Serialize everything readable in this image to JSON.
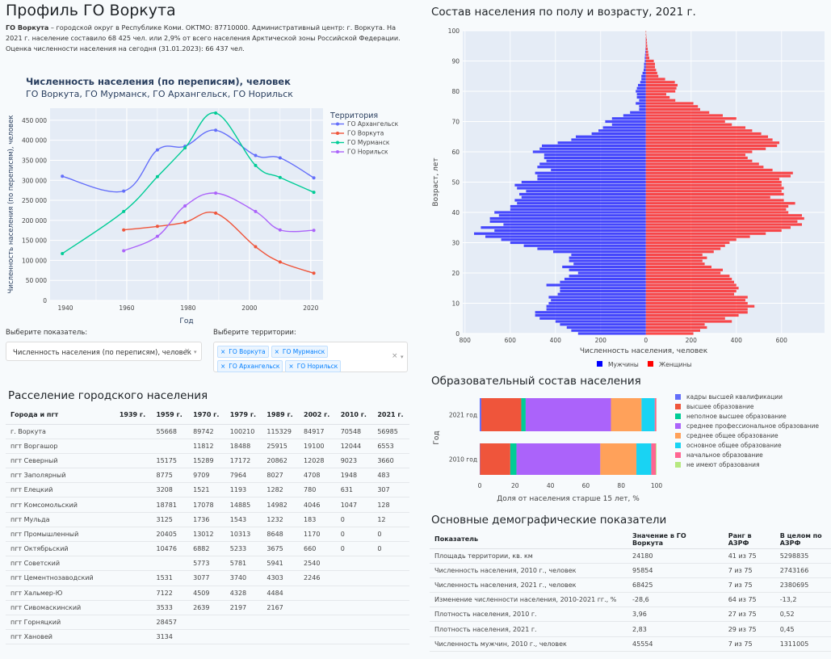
{
  "page": {
    "title": "Профиль ГО Воркута",
    "intro_bold": "ГО Воркута",
    "intro_text": " – городской округ в Республике Коми. ОКТМО: 87710000. Административный центр: г. Воркута. На 2021 г. население составило 68 425 чел. или 2,9% от всего населения Арктической зоны Российской Федерации. Оценка численности населения на сегодня (31.01.2023): 66 437 чел."
  },
  "controls": {
    "indicator_label": "Выберите показатель:",
    "indicator_value": "Численность населения (по переписям), человек",
    "territories_label": "Выберите территории:",
    "territories": [
      "ГО Воркута",
      "ГО Мурманск",
      "ГО Архангельск",
      "ГО Норильск"
    ],
    "clear_glyph": "×",
    "arrow_glyph": "▾",
    "tag_remove_glyph": "×"
  },
  "settlement_table": {
    "title": "Расселение городского населения",
    "headers": [
      "Города и пгт",
      "1939 г.",
      "1959 г.",
      "1970 г.",
      "1979 г.",
      "1989 г.",
      "2002 г.",
      "2010 г.",
      "2021 г."
    ],
    "rows": [
      [
        "г. Воркута",
        "",
        "55668",
        "89742",
        "100210",
        "115329",
        "84917",
        "70548",
        "56985"
      ],
      [
        "пгт Воргашор",
        "",
        "",
        "11812",
        "18488",
        "25915",
        "19100",
        "12044",
        "6553"
      ],
      [
        "пгт Северный",
        "",
        "15175",
        "15289",
        "17172",
        "20862",
        "12028",
        "9023",
        "3660"
      ],
      [
        "пгт Заполярный",
        "",
        "8775",
        "9709",
        "7964",
        "8027",
        "4708",
        "1948",
        "483"
      ],
      [
        "пгт Елецкий",
        "",
        "3208",
        "1521",
        "1193",
        "1282",
        "780",
        "631",
        "307"
      ],
      [
        "пгт Комсомольский",
        "",
        "18781",
        "17078",
        "14885",
        "14982",
        "4046",
        "1047",
        "128"
      ],
      [
        "пгт Мульда",
        "",
        "3125",
        "1736",
        "1543",
        "1232",
        "183",
        "0",
        "12"
      ],
      [
        "пгт Промышленный",
        "",
        "20405",
        "13012",
        "10313",
        "8648",
        "1170",
        "0",
        "0"
      ],
      [
        "пгт Октябрьский",
        "",
        "10476",
        "6882",
        "5233",
        "3675",
        "660",
        "0",
        "0"
      ],
      [
        "пгт Советский",
        "",
        "",
        "5773",
        "5781",
        "5941",
        "2540",
        "",
        ""
      ],
      [
        "пгт Цементнозаводский",
        "",
        "1531",
        "3077",
        "3740",
        "4303",
        "2246",
        "",
        ""
      ],
      [
        "пгт Хальмер-Ю",
        "",
        "7122",
        "4509",
        "4328",
        "4484",
        "",
        "",
        ""
      ],
      [
        "пгт Сивомаскинский",
        "",
        "3533",
        "2639",
        "2197",
        "2167",
        "",
        "",
        ""
      ],
      [
        "пгт Горняцкий",
        "",
        "28457",
        "",
        "",
        "",
        "",
        "",
        ""
      ],
      [
        "пгт Хановей",
        "",
        "3134",
        "",
        "",
        "",
        "",
        "",
        ""
      ]
    ]
  },
  "demo_table": {
    "title": "Основные демографические показатели",
    "headers": [
      "Показатель",
      "Значение в ГО Воркута",
      "Ранг в АЗРФ",
      "В целом по АЗРФ"
    ],
    "rows": [
      [
        "Площадь территории, кв. км",
        "24180",
        "41 из 75",
        "5298835"
      ],
      [
        "Численность населения, 2010 г., человек",
        "95854",
        "7 из 75",
        "2743166"
      ],
      [
        "Численность населения, 2021 г., человек",
        "68425",
        "7 из 75",
        "2380695"
      ],
      [
        "Изменение численности населения, 2010-2021 гг., %",
        "-28,6",
        "64 из 75",
        "-13,2"
      ],
      [
        "Плотность населения, 2010 г.",
        "3,96",
        "27 из 75",
        "0,52"
      ],
      [
        "Плотность населения, 2021 г.",
        "2,83",
        "29 из 75",
        "0,45"
      ],
      [
        "Численность мужчин, 2010 г., человек",
        "45554",
        "7 из 75",
        "1311005"
      ]
    ]
  },
  "chart_data": [
    {
      "type": "line",
      "title": "Численность населения (по переписям), человек",
      "subtitle": "ГО Воркута, ГО Мурманск, ГО Архангельск, ГО Норильск",
      "xlabel": "Год",
      "ylabel": "Численность населения (по переписям), человек",
      "xlim": [
        1935,
        2024
      ],
      "ylim": [
        0,
        480000
      ],
      "xticks": [
        1940,
        1960,
        1980,
        2000,
        2020
      ],
      "yticks": [
        0,
        50000,
        100000,
        150000,
        200000,
        250000,
        300000,
        350000,
        400000,
        450000
      ],
      "ytick_labels": [
        "0",
        "50 000",
        "100 000",
        "150 000",
        "200 000",
        "250 000",
        "300 000",
        "350 000",
        "400 000",
        "450 000"
      ],
      "grid": true,
      "legend_title": "Территория",
      "legend_position": "right",
      "series": [
        {
          "name": "ГО Архангельск",
          "color": "#636efa",
          "x": [
            1939,
            1959,
            1970,
            1979,
            1989,
            2002,
            2010,
            2021
          ],
          "y": [
            310000,
            273000,
            376000,
            385000,
            425000,
            362000,
            356000,
            306000
          ]
        },
        {
          "name": "ГО Воркута",
          "color": "#ef553b",
          "x": [
            1959,
            1970,
            1979,
            1989,
            2002,
            2010,
            2021
          ],
          "y": [
            176000,
            185000,
            195000,
            218000,
            134000,
            96000,
            68000
          ]
        },
        {
          "name": "ГО Мурманск",
          "color": "#00cc96",
          "x": [
            1939,
            1959,
            1970,
            1979,
            1989,
            2002,
            2010,
            2021
          ],
          "y": [
            117000,
            222000,
            309000,
            381000,
            468000,
            337000,
            307000,
            270000
          ]
        },
        {
          "name": "ГО Норильск",
          "color": "#ab63fa",
          "x": [
            1959,
            1970,
            1979,
            1989,
            2002,
            2010,
            2021
          ],
          "y": [
            124000,
            160000,
            236000,
            268000,
            222000,
            176000,
            175000
          ]
        }
      ]
    },
    {
      "type": "bar",
      "orientation": "horizontal-pyramid",
      "title": "Состав населения по полу и возрасту, 2021 г.",
      "xlabel": "Численность населения, человек",
      "ylabel": "Возраст, лет",
      "xticks": [
        -800,
        -600,
        -400,
        -200,
        0,
        200,
        400,
        600
      ],
      "xtick_labels": [
        "800",
        "600",
        "400",
        "200",
        "0",
        "200",
        "400",
        "600"
      ],
      "yticks": [
        0,
        10,
        20,
        30,
        40,
        50,
        60,
        70,
        80,
        90,
        100
      ],
      "xlim": [
        -810,
        790
      ],
      "ylim": [
        0,
        100
      ],
      "legend_position": "bottom",
      "ages_from": 0,
      "series": [
        {
          "name": "Мужчины",
          "color": "#0000ff",
          "values": [
            300,
            330,
            350,
            380,
            400,
            470,
            490,
            490,
            440,
            440,
            430,
            420,
            430,
            390,
            380,
            380,
            440,
            380,
            360,
            340,
            300,
            340,
            370,
            320,
            340,
            340,
            330,
            410,
            480,
            540,
            600,
            640,
            710,
            760,
            670,
            730,
            630,
            690,
            690,
            650,
            670,
            600,
            600,
            570,
            580,
            550,
            560,
            530,
            570,
            580,
            550,
            480,
            480,
            490,
            420,
            480,
            470,
            440,
            450,
            450,
            500,
            470,
            460,
            390,
            330,
            310,
            240,
            210,
            190,
            150,
            180,
            150,
            100,
            70,
            30,
            30,
            45,
            30,
            40,
            40,
            45,
            40,
            35,
            25,
            20,
            20,
            15,
            10,
            8,
            8,
            5,
            5,
            4,
            3,
            2,
            1,
            1,
            1,
            0,
            0,
            0
          ]
        },
        {
          "name": "Женщины",
          "color": "#ff0000",
          "values": [
            210,
            240,
            270,
            260,
            380,
            350,
            410,
            450,
            450,
            480,
            450,
            440,
            450,
            390,
            400,
            410,
            400,
            390,
            380,
            370,
            330,
            340,
            290,
            260,
            250,
            270,
            250,
            300,
            330,
            350,
            370,
            400,
            460,
            530,
            600,
            640,
            690,
            670,
            700,
            690,
            630,
            620,
            630,
            660,
            610,
            550,
            610,
            600,
            610,
            600,
            600,
            590,
            640,
            650,
            560,
            520,
            500,
            470,
            450,
            440,
            470,
            530,
            580,
            590,
            560,
            540,
            510,
            470,
            440,
            380,
            350,
            400,
            340,
            280,
            240,
            230,
            210,
            130,
            105,
            90,
            130,
            135,
            140,
            128,
            85,
            55,
            50,
            45,
            40,
            40,
            35,
            15,
            12,
            10,
            8,
            6,
            5,
            4,
            2,
            1,
            0
          ]
        }
      ]
    },
    {
      "type": "bar",
      "orientation": "horizontal-stacked",
      "title": "Образовательный состав населения",
      "xlabel": "Доля от населения старше 15 лет, %",
      "ylabel": "Год",
      "categories": [
        "2021 год",
        "2010 год"
      ],
      "xlim": [
        0,
        100
      ],
      "xticks": [
        0,
        20,
        40,
        60,
        80,
        100
      ],
      "legend_position": "right",
      "series": [
        {
          "name": "кадры высшей квалификации",
          "color": "#636efa",
          "values": [
            0.9,
            0.2
          ]
        },
        {
          "name": "высшее образование",
          "color": "#ef553b",
          "values": [
            22.6,
            17.1
          ]
        },
        {
          "name": "неполное высшее образование",
          "color": "#00cc96",
          "values": [
            2.5,
            3.5
          ]
        },
        {
          "name": "среднее профессиональное образование",
          "color": "#ab63fa",
          "values": [
            48.2,
            47.4
          ]
        },
        {
          "name": "среднее общее образование",
          "color": "#ffa15a",
          "values": [
            17.3,
            20.4
          ]
        },
        {
          "name": "основное общее образование",
          "color": "#19d3f3",
          "values": [
            7.5,
            8.4
          ]
        },
        {
          "name": "начальное образование",
          "color": "#ff6692",
          "values": [
            0.9,
            2.6
          ]
        },
        {
          "name": "не имеют образования",
          "color": "#b6e880",
          "values": [
            0.1,
            0.4
          ]
        }
      ]
    }
  ],
  "pyramid_title": "Состав населения по полу и возрасту, 2021 г.",
  "education_title": "Образовательный состав населения"
}
